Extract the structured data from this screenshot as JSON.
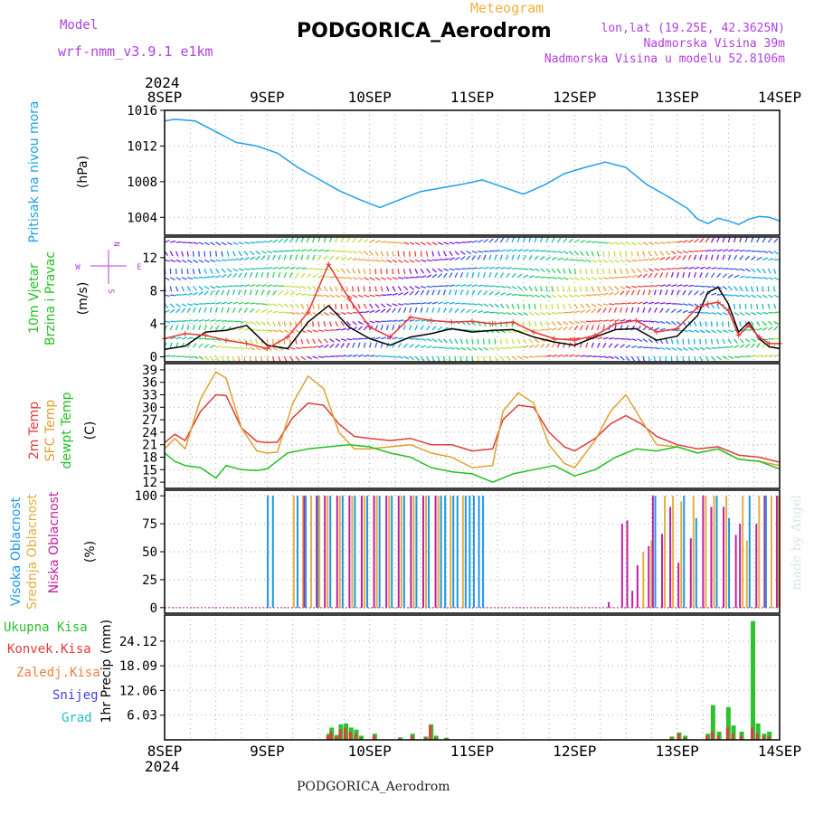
{
  "header": {
    "model_label": "Model",
    "model_name": "wrf-nmm_v3.9.1  e1km",
    "product": "Meteogram",
    "station": "PODGORICA_Aerodrom",
    "coords": "lon,lat (19.25E, 42.3625N)",
    "altitude": "Nadmorska Visina 39m",
    "model_altitude": "Nadmorska Visina u modelu 52.8106m",
    "credit": "made by Angel"
  },
  "footer": {
    "station": "PODGORICA_Aerodrom"
  },
  "colors": {
    "pressure": "#1ea0e6",
    "wind_speed": "#000000",
    "gust": "#e83838",
    "t2m": "#e03c3c",
    "sfc": "#e0a030",
    "dewpt": "#22c022",
    "cloud_high": "#1e96e6",
    "cloud_mid": "#e0b040",
    "cloud_low": "#c020a0",
    "total_precip": "#2ec02e",
    "conv_precip": "#e03c3c",
    "frozen": "#f08040",
    "snow": "#4040e0",
    "grad": "#20c0c0",
    "label_purple": "#b040e0"
  },
  "chart_data": [
    {
      "type": "line",
      "id": "pressure",
      "ylabel": "Pritisak na nivou mora",
      "unit": "(hPa)",
      "x_start": "2024-09-08 00:00",
      "x_end": "2024-09-14 00:00",
      "x_ticks": [
        "8SEP",
        "9SEP",
        "10SEP",
        "11SEP",
        "12SEP",
        "13SEP",
        "14SEP"
      ],
      "year": "2024",
      "ylim": [
        1002,
        1016
      ],
      "yticks": [
        "1004",
        "1008",
        "1012",
        "1016"
      ],
      "series": [
        {
          "name": "Pritisak na nivou mora",
          "x": [
            0,
            0.1,
            0.3,
            0.5,
            0.7,
            0.9,
            1.1,
            1.3,
            1.5,
            1.7,
            1.9,
            2.1,
            2.3,
            2.5,
            2.7,
            2.9,
            3.1,
            3.3,
            3.5,
            3.7,
            3.9,
            4.1,
            4.3,
            4.5,
            4.7,
            4.9,
            5.1,
            5.2,
            5.3,
            5.4,
            5.5,
            5.6,
            5.7,
            5.8,
            5.9,
            6.0
          ],
          "values": [
            1014.8,
            1015.0,
            1014.8,
            1013.6,
            1012.4,
            1012.0,
            1011.2,
            1009.6,
            1008.3,
            1007.0,
            1006.0,
            1005.1,
            1006.0,
            1006.9,
            1007.3,
            1007.7,
            1008.2,
            1007.4,
            1006.6,
            1007.6,
            1008.9,
            1009.6,
            1010.2,
            1009.6,
            1007.7,
            1006.4,
            1005.0,
            1003.8,
            1003.3,
            1003.9,
            1003.6,
            1003.2,
            1003.8,
            1004.1,
            1004.0,
            1003.6
          ]
        }
      ]
    },
    {
      "type": "line",
      "id": "wind",
      "ylabel": "10m Vjetar",
      "ylabel2": "Brzina i Pravac",
      "unit": "(m/s)",
      "compass": {
        "north": "N",
        "west": "W",
        "east": "E",
        "south": "S"
      },
      "ylim": [
        -0.6,
        14.5
      ],
      "yticks": [
        "0",
        "4",
        "8",
        "12"
      ],
      "series": [
        {
          "name": "speed",
          "x": [
            0,
            0.2,
            0.4,
            0.6,
            0.8,
            1.0,
            1.2,
            1.4,
            1.6,
            1.8,
            2.0,
            2.2,
            2.4,
            2.6,
            2.8,
            3.0,
            3.2,
            3.4,
            3.6,
            3.8,
            4.0,
            4.2,
            4.4,
            4.6,
            4.8,
            5.0,
            5.2,
            5.3,
            5.4,
            5.5,
            5.6,
            5.7,
            5.8,
            5.9,
            6.0
          ],
          "values": [
            0.9,
            1.3,
            3.0,
            3.2,
            3.8,
            1.4,
            1.0,
            4.2,
            6.2,
            3.6,
            2.2,
            1.4,
            2.4,
            2.8,
            3.4,
            3.0,
            3.2,
            3.3,
            2.4,
            1.8,
            1.4,
            2.4,
            3.3,
            3.4,
            2.0,
            2.5,
            5.0,
            7.8,
            8.4,
            6.4,
            3.0,
            4.2,
            2.2,
            1.2,
            1.0
          ]
        },
        {
          "name": "gust",
          "x": [
            0,
            0.2,
            0.4,
            0.6,
            0.8,
            1.0,
            1.2,
            1.4,
            1.6,
            1.8,
            2.0,
            2.2,
            2.4,
            2.6,
            2.8,
            3.0,
            3.2,
            3.4,
            3.6,
            3.8,
            4.0,
            4.2,
            4.4,
            4.6,
            4.8,
            5.0,
            5.2,
            5.3,
            5.4,
            5.5,
            5.6,
            5.7,
            5.8,
            5.9,
            6.0
          ],
          "values": [
            2.2,
            2.8,
            2.6,
            2.0,
            1.6,
            1.0,
            2.4,
            5.4,
            11.2,
            7.0,
            3.6,
            2.4,
            4.8,
            4.4,
            4.2,
            4.3,
            4.0,
            4.2,
            3.0,
            2.2,
            2.0,
            2.6,
            4.0,
            4.4,
            3.0,
            3.4,
            6.0,
            6.4,
            6.6,
            5.6,
            2.6,
            3.8,
            2.4,
            1.6,
            1.6
          ]
        }
      ]
    },
    {
      "type": "line",
      "id": "temperature",
      "ylabel": "2m Temp",
      "ylabel2": "SFC Temp",
      "ylabel3": "dewpt Temp",
      "unit": "(C)",
      "ylim": [
        10.5,
        40.5
      ],
      "yticks": [
        "12",
        "15",
        "18",
        "21",
        "24",
        "27",
        "30",
        "33",
        "36",
        "39"
      ],
      "series": [
        {
          "name": "2m Temp",
          "x": [
            0,
            0.1,
            0.2,
            0.35,
            0.5,
            0.6,
            0.75,
            0.9,
            1.0,
            1.1,
            1.25,
            1.4,
            1.55,
            1.7,
            1.85,
            2.0,
            2.2,
            2.4,
            2.6,
            2.8,
            3.0,
            3.2,
            3.3,
            3.45,
            3.6,
            3.75,
            3.9,
            4.0,
            4.2,
            4.35,
            4.5,
            4.65,
            4.8,
            5.0,
            5.2,
            5.4,
            5.6,
            5.8,
            6.0
          ],
          "values": [
            21.5,
            23.5,
            22.0,
            29.0,
            33.0,
            32.8,
            25.0,
            21.8,
            21.5,
            21.6,
            27.5,
            31.0,
            30.5,
            26.0,
            23.0,
            22.5,
            22.0,
            22.5,
            21.0,
            21.0,
            19.5,
            20.0,
            27.0,
            30.5,
            30.0,
            24.0,
            20.5,
            19.5,
            22.5,
            26.0,
            28.0,
            26.0,
            23.0,
            21.0,
            20.0,
            20.5,
            18.5,
            18.0,
            16.8
          ]
        },
        {
          "name": "SFC Temp",
          "x": [
            0,
            0.1,
            0.2,
            0.35,
            0.5,
            0.6,
            0.75,
            0.9,
            1.0,
            1.1,
            1.25,
            1.4,
            1.55,
            1.7,
            1.85,
            2.0,
            2.2,
            2.4,
            2.6,
            2.8,
            3.0,
            3.2,
            3.3,
            3.45,
            3.6,
            3.75,
            3.9,
            4.0,
            4.2,
            4.35,
            4.5,
            4.65,
            4.8,
            5.0,
            5.2,
            5.4,
            5.6,
            5.8,
            6.0
          ],
          "values": [
            20.0,
            22.5,
            20.0,
            32.0,
            38.5,
            37.0,
            25.0,
            19.5,
            19.0,
            19.2,
            31.0,
            37.5,
            34.5,
            24.0,
            20.0,
            20.0,
            20.5,
            21.0,
            19.0,
            18.0,
            15.5,
            16.0,
            29.0,
            33.5,
            31.0,
            21.0,
            16.5,
            15.5,
            22.0,
            29.0,
            33.0,
            27.0,
            21.0,
            20.5,
            19.0,
            20.0,
            17.5,
            17.0,
            16.0
          ]
        },
        {
          "name": "dewpt Temp",
          "x": [
            0,
            0.1,
            0.2,
            0.35,
            0.5,
            0.6,
            0.75,
            0.9,
            1.0,
            1.2,
            1.4,
            1.6,
            1.8,
            2.0,
            2.2,
            2.4,
            2.6,
            2.8,
            3.0,
            3.2,
            3.4,
            3.6,
            3.8,
            4.0,
            4.2,
            4.4,
            4.6,
            4.8,
            5.0,
            5.2,
            5.4,
            5.6,
            5.8,
            6.0
          ],
          "values": [
            19.0,
            17.0,
            16.0,
            15.5,
            13.0,
            16.0,
            15.0,
            14.8,
            15.2,
            19.0,
            20.0,
            20.5,
            21.0,
            20.5,
            19.0,
            18.0,
            15.5,
            14.5,
            14.0,
            12.0,
            14.0,
            15.0,
            16.0,
            13.5,
            15.0,
            18.0,
            20.0,
            19.5,
            20.5,
            19.0,
            20.0,
            17.5,
            17.0,
            15.2
          ]
        }
      ]
    },
    {
      "type": "bar",
      "id": "clouds",
      "ylabel": "Visoka Oblacnost",
      "ylabel2": "Srednja Oblacnost",
      "ylabel3": "Niska Oblacnost",
      "unit": "(%)",
      "ylim": [
        -5,
        105
      ],
      "yticks": [
        "0",
        "25",
        "50",
        "75",
        "100"
      ],
      "bars": [
        {
          "x": 1.02,
          "high": 100
        },
        {
          "x": 1.07,
          "high": 100
        },
        {
          "x": 1.26,
          "mid": 100
        },
        {
          "x": 1.31,
          "high": 100
        },
        {
          "x": 1.35,
          "mid": 100,
          "low": 100
        },
        {
          "x": 1.39,
          "high": 100
        },
        {
          "x": 1.43,
          "mid": 100
        },
        {
          "x": 1.47,
          "low": 100
        },
        {
          "x": 1.51,
          "mid": 100,
          "high": 100
        },
        {
          "x": 1.55,
          "low": 100
        },
        {
          "x": 1.59,
          "mid": 100
        },
        {
          "x": 1.63,
          "high": 100
        },
        {
          "x": 1.67,
          "low": 100
        },
        {
          "x": 1.71,
          "mid": 100
        },
        {
          "x": 1.75,
          "high": 100
        },
        {
          "x": 1.79,
          "low": 100
        },
        {
          "x": 1.83,
          "mid": 100
        },
        {
          "x": 1.87,
          "high": 100
        },
        {
          "x": 1.91,
          "low": 100
        },
        {
          "x": 1.95,
          "mid": 100
        },
        {
          "x": 1.99,
          "high": 100
        },
        {
          "x": 2.03,
          "low": 100
        },
        {
          "x": 2.07,
          "mid": 100
        },
        {
          "x": 2.11,
          "high": 100
        },
        {
          "x": 2.15,
          "low": 100
        },
        {
          "x": 2.19,
          "mid": 100
        },
        {
          "x": 2.23,
          "high": 100
        },
        {
          "x": 2.27,
          "low": 100
        },
        {
          "x": 2.31,
          "mid": 100
        },
        {
          "x": 2.35,
          "high": 100
        },
        {
          "x": 2.39,
          "low": 100
        },
        {
          "x": 2.43,
          "mid": 100
        },
        {
          "x": 2.47,
          "high": 100
        },
        {
          "x": 2.51,
          "low": 100
        },
        {
          "x": 2.55,
          "mid": 100
        },
        {
          "x": 2.59,
          "high": 100
        },
        {
          "x": 2.63,
          "low": 100
        },
        {
          "x": 2.67,
          "mid": 100
        },
        {
          "x": 2.71,
          "high": 100
        },
        {
          "x": 2.75,
          "high": 100
        },
        {
          "x": 2.79,
          "mid": 100
        },
        {
          "x": 2.83,
          "high": 100
        },
        {
          "x": 2.87,
          "high": 100
        },
        {
          "x": 2.91,
          "mid": 100
        },
        {
          "x": 2.95,
          "high": 100
        },
        {
          "x": 2.99,
          "high": 100
        },
        {
          "x": 3.03,
          "high": 100
        },
        {
          "x": 3.08,
          "high": 100
        },
        {
          "x": 3.12,
          "high": 100
        },
        {
          "x": 4.32,
          "low": 5
        },
        {
          "x": 4.45,
          "low": 75
        },
        {
          "x": 4.5,
          "low": 78
        },
        {
          "x": 4.55,
          "low": 15
        },
        {
          "x": 4.6,
          "low": 38
        },
        {
          "x": 4.67,
          "mid": 50
        },
        {
          "x": 4.71,
          "low": 55
        },
        {
          "x": 4.75,
          "mid": 60,
          "low": 100
        },
        {
          "x": 4.8,
          "high": 100
        },
        {
          "x": 4.84,
          "low": 66
        },
        {
          "x": 4.88,
          "mid": 100
        },
        {
          "x": 4.92,
          "low": 90
        },
        {
          "x": 4.96,
          "mid": 100
        },
        {
          "x": 5.0,
          "low": 40
        },
        {
          "x": 5.04,
          "mid": 95
        },
        {
          "x": 5.08,
          "high": 100
        },
        {
          "x": 5.12,
          "low": 62
        },
        {
          "x": 5.16,
          "mid": 100
        },
        {
          "x": 5.2,
          "high": 80
        },
        {
          "x": 5.24,
          "low": 100
        },
        {
          "x": 5.28,
          "mid": 100
        },
        {
          "x": 5.32,
          "low": 90
        },
        {
          "x": 5.36,
          "mid": 100
        },
        {
          "x": 5.4,
          "high": 100
        },
        {
          "x": 5.44,
          "low": 90
        },
        {
          "x": 5.48,
          "mid": 100
        },
        {
          "x": 5.52,
          "high": 80
        },
        {
          "x": 5.56,
          "low": 65
        },
        {
          "x": 5.6,
          "low": 75
        },
        {
          "x": 5.64,
          "mid": 100
        },
        {
          "x": 5.68,
          "mid": 60
        },
        {
          "x": 5.72,
          "high": 100
        },
        {
          "x": 5.76,
          "low": 75
        },
        {
          "x": 5.8,
          "mid": 100
        },
        {
          "x": 5.84,
          "low": 100
        },
        {
          "x": 5.88,
          "high": 100
        },
        {
          "x": 5.92,
          "mid": 100
        },
        {
          "x": 5.96,
          "low": 100
        },
        {
          "x": 5.99,
          "mid": 100
        }
      ]
    },
    {
      "type": "bar",
      "id": "precip",
      "ylabel": "1hr Precip",
      "unit": "(mm)",
      "legend": [
        "Ukupna  Kisa",
        "Konvek.Kisa",
        "Zaledj.Kisa",
        "Snijeg",
        "Grad"
      ],
      "ylim": [
        0,
        30.5
      ],
      "yticks": [
        "6.03",
        "12.06",
        "18.09",
        "24.12"
      ],
      "bars": [
        {
          "x": 1.6,
          "total": 1.5,
          "conv": 1.0
        },
        {
          "x": 1.63,
          "total": 3.0,
          "conv": 2.0
        },
        {
          "x": 1.68,
          "total": 1.2,
          "conv": 0.8
        },
        {
          "x": 1.72,
          "total": 3.8,
          "conv": 2.5
        },
        {
          "x": 1.77,
          "total": 4.0,
          "conv": 3.0
        },
        {
          "x": 1.82,
          "total": 3.0,
          "conv": 2.0
        },
        {
          "x": 1.87,
          "total": 2.5,
          "conv": 1.5
        },
        {
          "x": 1.92,
          "total": 1.0,
          "conv": 0.5
        },
        {
          "x": 2.05,
          "total": 1.5,
          "conv": 1.0
        },
        {
          "x": 2.3,
          "total": 0.6,
          "conv": 0.4
        },
        {
          "x": 2.42,
          "total": 1.5,
          "conv": 1.0
        },
        {
          "x": 2.55,
          "total": 0.8,
          "conv": 0.5
        },
        {
          "x": 2.6,
          "total": 3.8,
          "conv": 3.5
        },
        {
          "x": 2.65,
          "total": 1.0,
          "conv": 0.6
        },
        {
          "x": 2.75,
          "total": 0.5,
          "conv": 0.3
        },
        {
          "x": 4.95,
          "total": 0.8,
          "conv": 0.5
        },
        {
          "x": 5.02,
          "total": 1.8,
          "conv": 1.5
        },
        {
          "x": 5.08,
          "total": 1.0,
          "conv": 0.6
        },
        {
          "x": 5.3,
          "total": 1.5,
          "conv": 1.0
        },
        {
          "x": 5.35,
          "total": 8.5,
          "conv": 2.0
        },
        {
          "x": 5.41,
          "total": 2.0,
          "conv": 1.0
        },
        {
          "x": 5.5,
          "total": 8.0,
          "conv": 3.0
        },
        {
          "x": 5.55,
          "total": 3.5,
          "conv": 1.5
        },
        {
          "x": 5.63,
          "total": 2.0,
          "conv": 1.0
        },
        {
          "x": 5.74,
          "total": 29.0,
          "conv": 3.0
        },
        {
          "x": 5.79,
          "total": 4.0,
          "conv": 1.5
        },
        {
          "x": 5.85,
          "total": 1.5,
          "conv": 1.0
        },
        {
          "x": 5.9,
          "total": 2.0,
          "conv": 0.8
        }
      ]
    }
  ]
}
